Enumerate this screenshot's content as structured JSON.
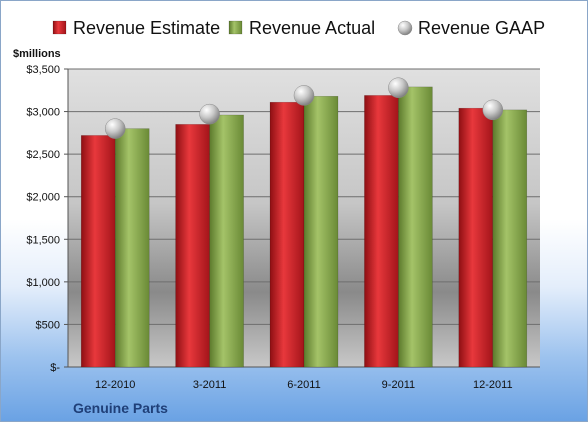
{
  "chart_data": {
    "type": "bar",
    "categories": [
      "12-2010",
      "3-2011",
      "6-2011",
      "9-2011",
      "12-2011"
    ],
    "series": [
      {
        "name": "Revenue Estimate",
        "kind": "bar",
        "color": "#cc1a1f",
        "values": [
          2720,
          2850,
          3110,
          3190,
          3040
        ]
      },
      {
        "name": "Revenue Actual",
        "kind": "bar",
        "color": "#7f9e45",
        "values": [
          2800,
          2960,
          3180,
          3290,
          3020
        ]
      },
      {
        "name": "Revenue GAAP",
        "kind": "marker",
        "color": "#b8b8b8",
        "values": [
          2800,
          2970,
          3190,
          3280,
          3020
        ]
      }
    ],
    "ylabel": "$millions",
    "yticks": [
      {
        "value": 0,
        "label": "$-"
      },
      {
        "value": 500,
        "label": "$500"
      },
      {
        "value": 1000,
        "label": "$1,000"
      },
      {
        "value": 1500,
        "label": "$1,500"
      },
      {
        "value": 2000,
        "label": "$2,000"
      },
      {
        "value": 2500,
        "label": "$2,500"
      },
      {
        "value": 3000,
        "label": "$3,000"
      },
      {
        "value": 3500,
        "label": "$3,500"
      }
    ],
    "ylim": [
      0,
      3500
    ],
    "grid": true,
    "legend_position": "top",
    "company": "Genuine Parts"
  }
}
